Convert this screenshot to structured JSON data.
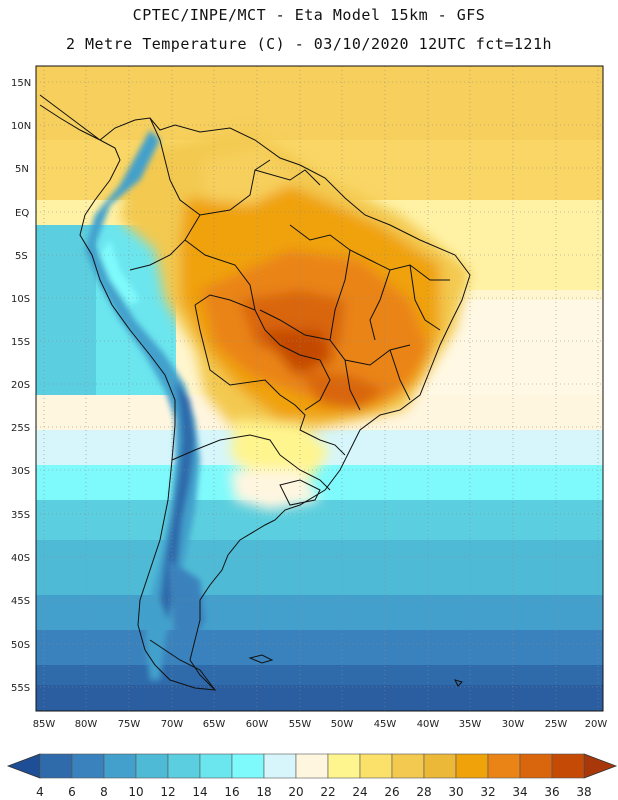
{
  "title": {
    "line1": "CPTEC/INPE/MCT -  Eta Model 15km - GFS",
    "line2": "2 Metre Temperature (C) - 03/10/2020 12UTC fct=121h"
  },
  "map": {
    "lat_labels": [
      "15N",
      "10N",
      "5N",
      "EQ",
      "5S",
      "10S",
      "15S",
      "20S",
      "25S",
      "30S",
      "35S",
      "40S",
      "45S",
      "50S",
      "55S"
    ],
    "lon_labels": [
      "85W",
      "80W",
      "75W",
      "70W",
      "65W",
      "60W",
      "55W",
      "50W",
      "45W",
      "40W",
      "35W",
      "30W",
      "25W",
      "20W"
    ]
  },
  "colorbar": {
    "labels": [
      "4",
      "6",
      "8",
      "10",
      "12",
      "14",
      "16",
      "18",
      "20",
      "22",
      "24",
      "26",
      "28",
      "30",
      "32",
      "34",
      "36",
      "38"
    ],
    "colors": [
      "#1d4e96",
      "#2f6aab",
      "#3a82bd",
      "#43a0cc",
      "#4fbad6",
      "#5bcfdf",
      "#6be5ee",
      "#7ffafc",
      "#d6f6fb",
      "#fff6e0",
      "#fff58f",
      "#fbe06a",
      "#f3c94f",
      "#ecb838",
      "#f0a20a",
      "#ea8416",
      "#d9650d",
      "#c44a05",
      "#a8380a"
    ]
  }
}
